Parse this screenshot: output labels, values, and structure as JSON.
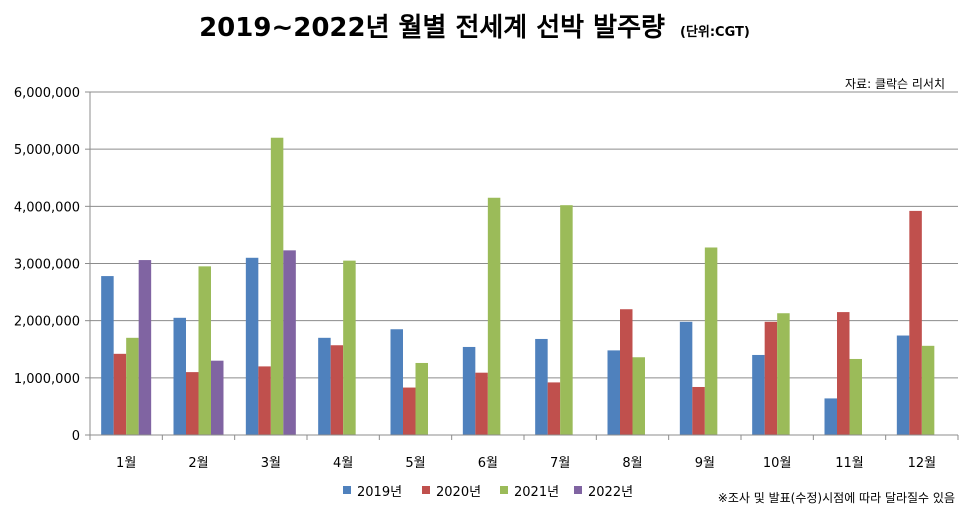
{
  "chart_data": {
    "type": "bar",
    "title": "2019~2022년 월별 전세계 선박 발주량",
    "unit_label": "(단위:CGT)",
    "source": "자료: 클락슨 리서치",
    "note": "※조사 및 발표(수정)시점에 따라 달라질수 있음",
    "categories": [
      "1월",
      "2월",
      "3월",
      "4월",
      "5월",
      "6월",
      "7월",
      "8월",
      "9월",
      "10월",
      "11월",
      "12월"
    ],
    "ylim": [
      0,
      6000000
    ],
    "yticks": [
      0,
      1000000,
      2000000,
      3000000,
      4000000,
      5000000,
      6000000
    ],
    "ytick_labels": [
      "0",
      "1,000,000",
      "2,000,000",
      "3,000,000",
      "4,000,000",
      "5,000,000",
      "6,000,000"
    ],
    "grid": true,
    "legend_position": "bottom",
    "series": [
      {
        "name": "2019년",
        "color": "#4f81bd",
        "values": [
          2780000,
          2050000,
          3100000,
          1700000,
          1850000,
          1540000,
          1680000,
          1480000,
          1980000,
          1400000,
          640000,
          1740000
        ]
      },
      {
        "name": "2020년",
        "color": "#c0504d",
        "values": [
          1420000,
          1100000,
          1200000,
          1570000,
          830000,
          1090000,
          920000,
          2200000,
          840000,
          1980000,
          2150000,
          3920000
        ]
      },
      {
        "name": "2021년",
        "color": "#9bbb59",
        "values": [
          1700000,
          2950000,
          5200000,
          3050000,
          1260000,
          4150000,
          4020000,
          1360000,
          3280000,
          2130000,
          1330000,
          1560000
        ]
      },
      {
        "name": "2022년",
        "color": "#8064a2",
        "values": [
          3060000,
          1300000,
          3230000,
          null,
          null,
          null,
          null,
          null,
          null,
          null,
          null,
          null
        ]
      }
    ]
  }
}
